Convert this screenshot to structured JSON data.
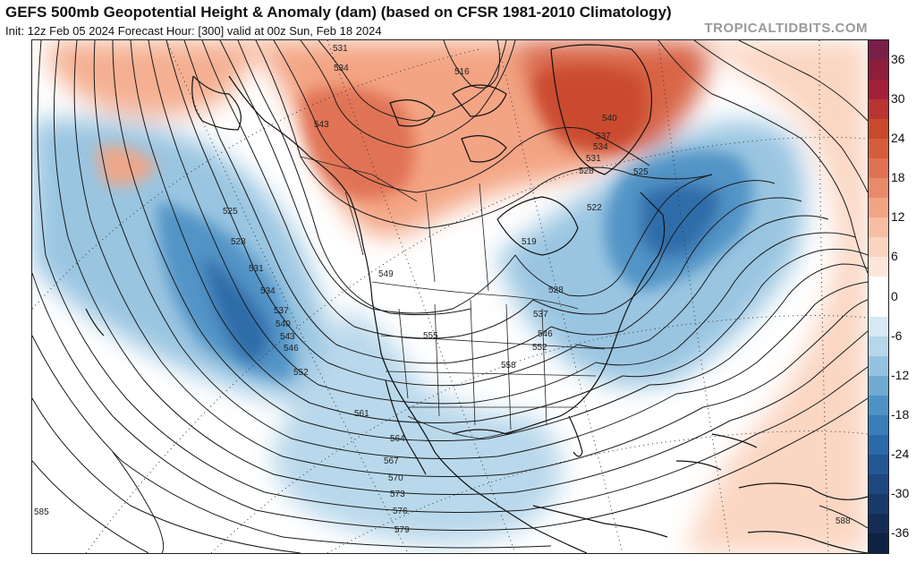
{
  "header": {
    "title": "GEFS 500mb Geopotential Height & Anomaly (dam) (based on CFSR 1981-2010 Climatology)",
    "subtitle": "Init: 12z Feb 05 2024   Forecast Hour: [300]   valid at 00z Sun, Feb 18 2024",
    "brand": "TROPICALTIDBITS.COM"
  },
  "colorbar": {
    "min": -39,
    "max": 39,
    "ticks": [
      "36",
      "30",
      "24",
      "18",
      "12",
      "6",
      "0",
      "-6",
      "-12",
      "-18",
      "-24",
      "-30",
      "-36"
    ],
    "tick_values": [
      36,
      30,
      24,
      18,
      12,
      6,
      0,
      -6,
      -12,
      -18,
      -24,
      -30,
      -36
    ],
    "segments": [
      {
        "from": 36,
        "to": 39,
        "color": "#7a1f4a"
      },
      {
        "from": 33,
        "to": 36,
        "color": "#8e1e3c"
      },
      {
        "from": 30,
        "to": 33,
        "color": "#a3203a"
      },
      {
        "from": 27,
        "to": 30,
        "color": "#b93532"
      },
      {
        "from": 24,
        "to": 27,
        "color": "#c9492e"
      },
      {
        "from": 21,
        "to": 24,
        "color": "#d65d3c"
      },
      {
        "from": 18,
        "to": 21,
        "color": "#e07152"
      },
      {
        "from": 15,
        "to": 18,
        "color": "#ea8a6a"
      },
      {
        "from": 12,
        "to": 15,
        "color": "#f2a585"
      },
      {
        "from": 9,
        "to": 12,
        "color": "#f7bea3"
      },
      {
        "from": 6,
        "to": 9,
        "color": "#fbd4c0"
      },
      {
        "from": 3,
        "to": 6,
        "color": "#fde6da"
      },
      {
        "from": -3,
        "to": 3,
        "color": "#ffffff"
      },
      {
        "from": -6,
        "to": -3,
        "color": "#d6e8f3"
      },
      {
        "from": -9,
        "to": -6,
        "color": "#b6d6ea"
      },
      {
        "from": -12,
        "to": -9,
        "color": "#94c2e0"
      },
      {
        "from": -15,
        "to": -12,
        "color": "#70aad3"
      },
      {
        "from": -18,
        "to": -15,
        "color": "#4f92c5"
      },
      {
        "from": -21,
        "to": -18,
        "color": "#3a7db8"
      },
      {
        "from": -24,
        "to": -21,
        "color": "#2c69a8"
      },
      {
        "from": -27,
        "to": -24,
        "color": "#245795"
      },
      {
        "from": -30,
        "to": -27,
        "color": "#1f4780"
      },
      {
        "from": -33,
        "to": -30,
        "color": "#1a3a6a"
      },
      {
        "from": -36,
        "to": -33,
        "color": "#152d55"
      },
      {
        "from": -39,
        "to": -36,
        "color": "#0f2242"
      }
    ]
  },
  "map": {
    "contour_labels": [
      "531",
      "534",
      "516",
      "540",
      "543",
      "537",
      "534",
      "531",
      "528",
      "525",
      "522",
      "519",
      "525",
      "528",
      "531",
      "534",
      "537",
      "540",
      "543",
      "546",
      "552",
      "549",
      "555",
      "528",
      "537",
      "546",
      "552",
      "558",
      "561",
      "564",
      "567",
      "570",
      "573",
      "576",
      "579",
      "585",
      "588"
    ]
  }
}
